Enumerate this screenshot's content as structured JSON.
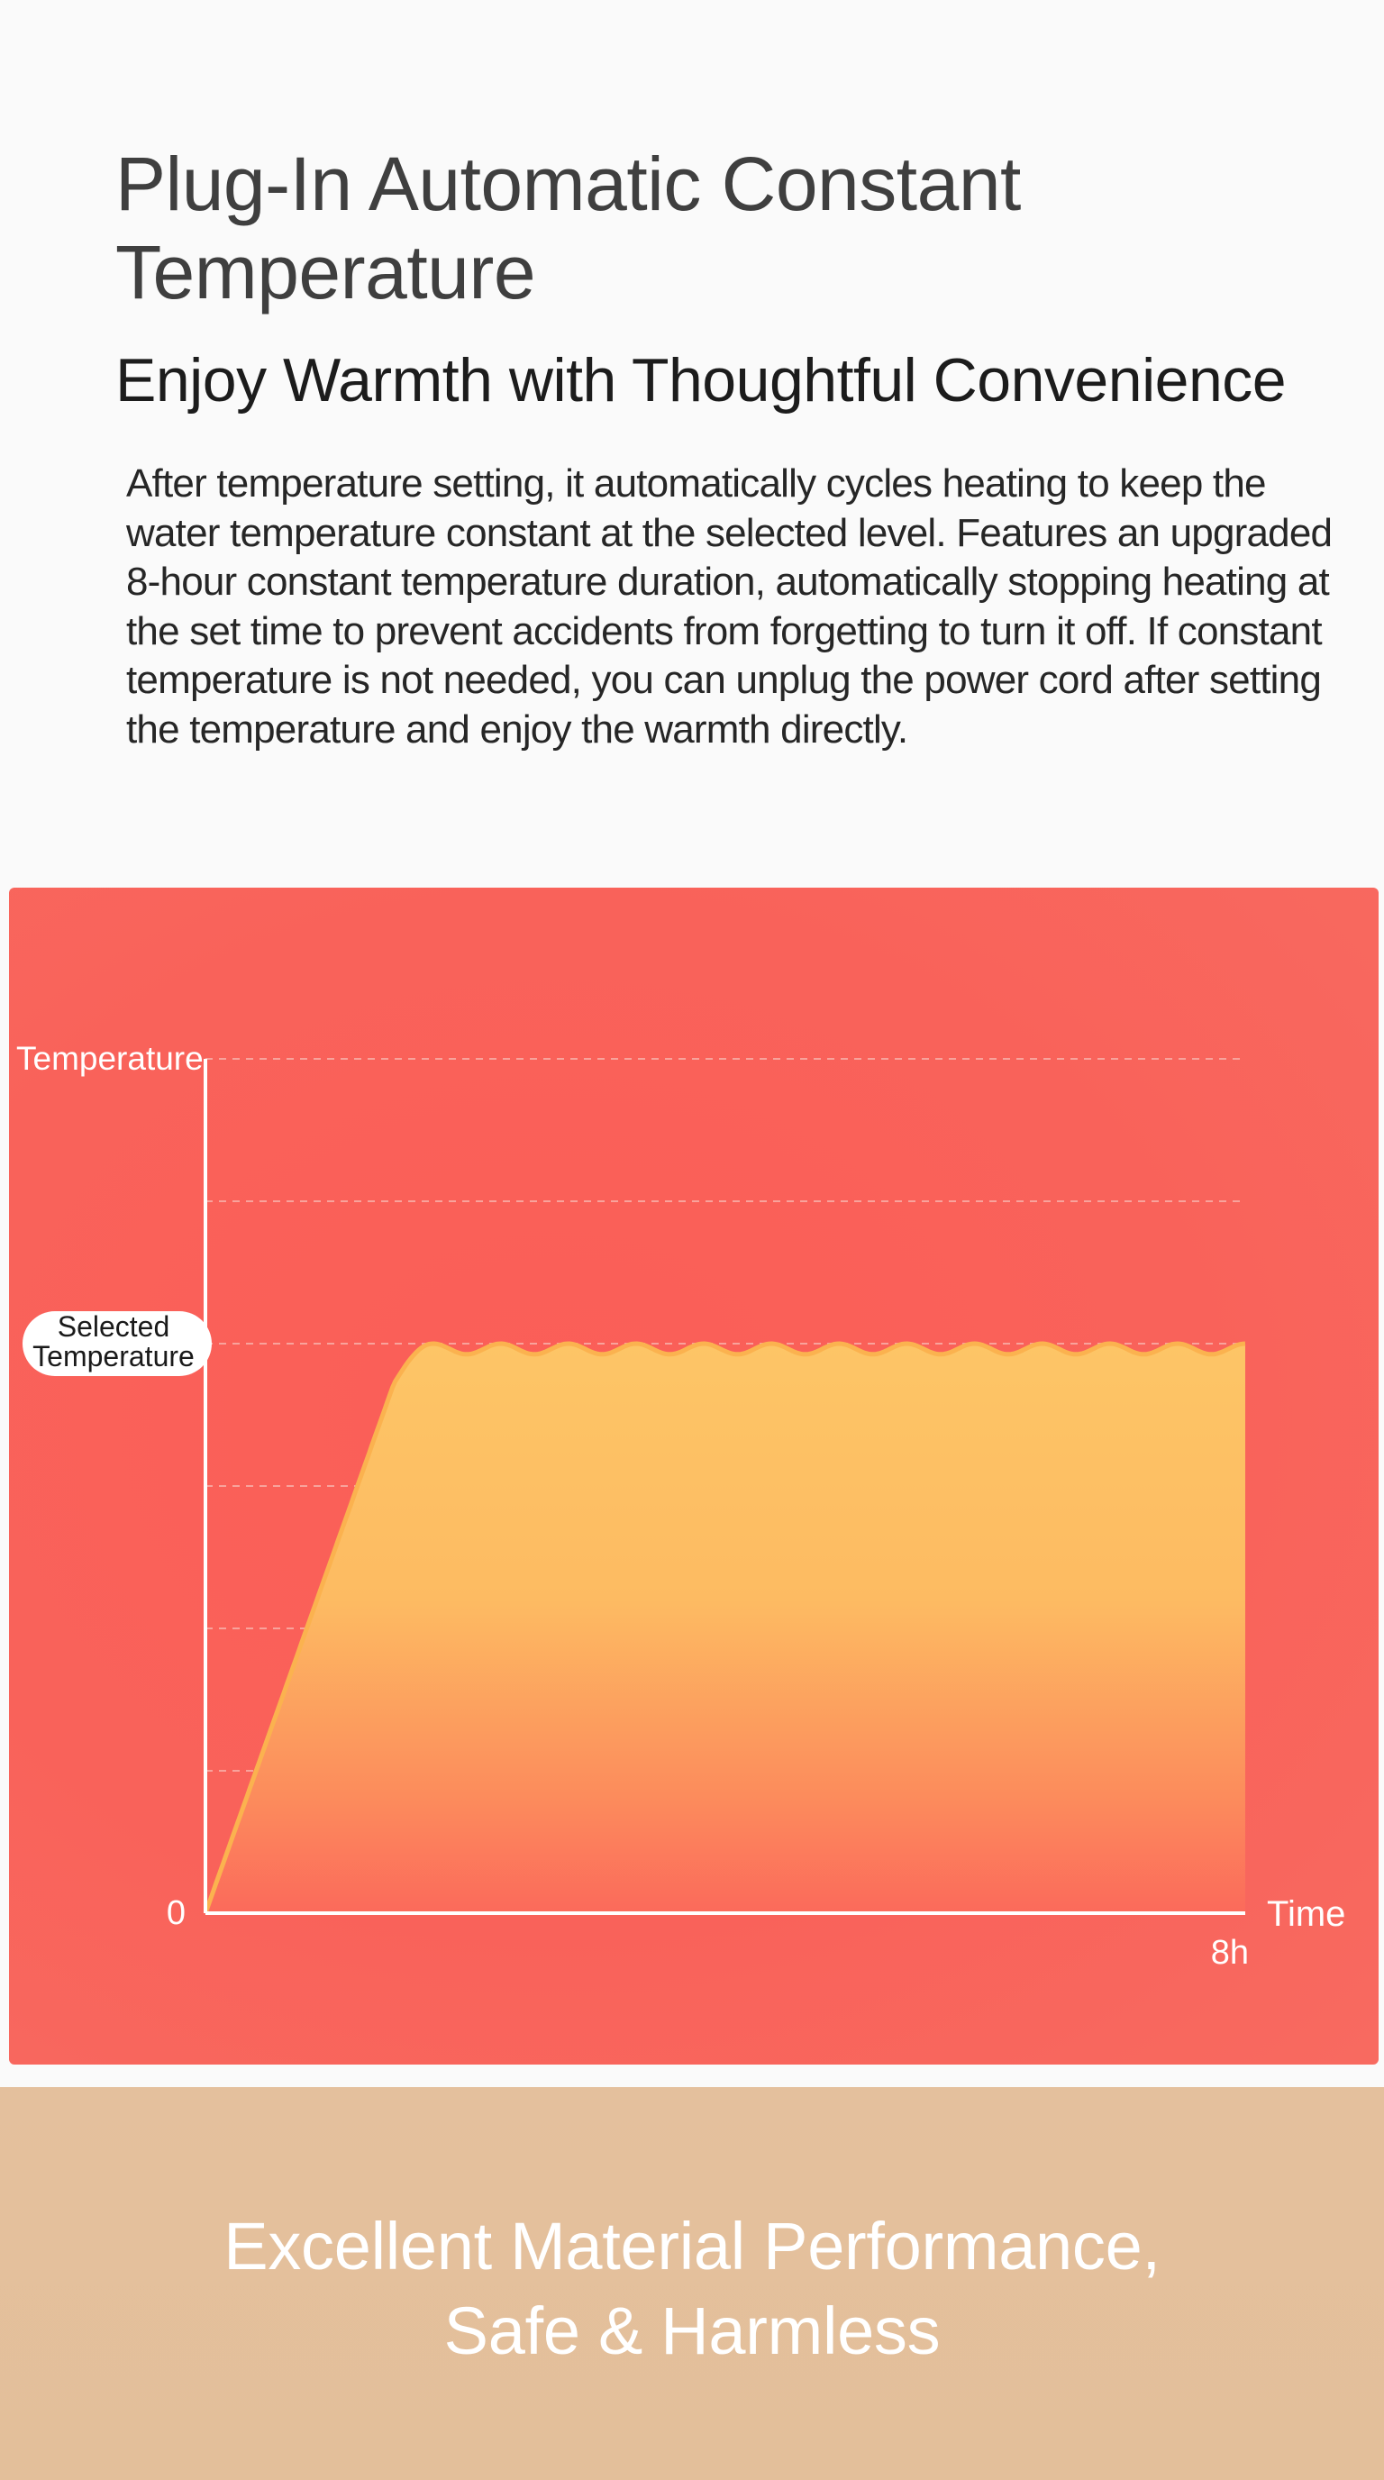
{
  "header": {
    "title": "Plug-In Automatic Constant Temperature",
    "subtitle": "Enjoy Warmth with Thoughtful Convenience",
    "description": "After temperature setting, it automatically cycles heating to keep the water temperature constant at the selected level. Features an upgraded 8-hour constant temperature duration, automatically stopping heating at the set time to prevent accidents from forgetting to turn it off. If constant temperature is not needed, you can unplug the power cord after setting the temperature and enjoy the warmth directly."
  },
  "chart_data": {
    "type": "area",
    "title": "",
    "xlabel": "Time",
    "ylabel": "Temperature",
    "x_ticks": [
      {
        "x": 0,
        "label": "0"
      },
      {
        "x": 8,
        "label": "8h"
      }
    ],
    "y_tick_label": "Selected Temperature",
    "y_tick_value": 4,
    "xlim": [
      0,
      8
    ],
    "ylim": [
      0,
      6
    ],
    "grid": true,
    "series": [
      {
        "x": [
          0,
          0.5,
          1.0,
          1.5,
          2.0,
          2.5,
          3.0,
          3.5,
          4.0,
          4.5,
          5.0,
          5.5,
          6.0,
          6.5,
          7.0,
          7.5,
          8.0
        ],
        "values": [
          0,
          1.2,
          2.4,
          3.6,
          4.0,
          4.0,
          4.0,
          4.0,
          4.0,
          4.0,
          4.0,
          4.0,
          4.0,
          4.0,
          4.0,
          4.0,
          4.0
        ]
      }
    ],
    "colors": {
      "background": "#fa5f58",
      "fill_top": "#fdc566",
      "fill_bottom": "#fc6a5c",
      "line": "#fbb24f",
      "axis": "#ffffff",
      "grid": "#f8a39c"
    }
  },
  "footer": {
    "line1": "Excellent Material Performance,",
    "line2": "Safe & Harmless",
    "background": "#e4c09d"
  }
}
